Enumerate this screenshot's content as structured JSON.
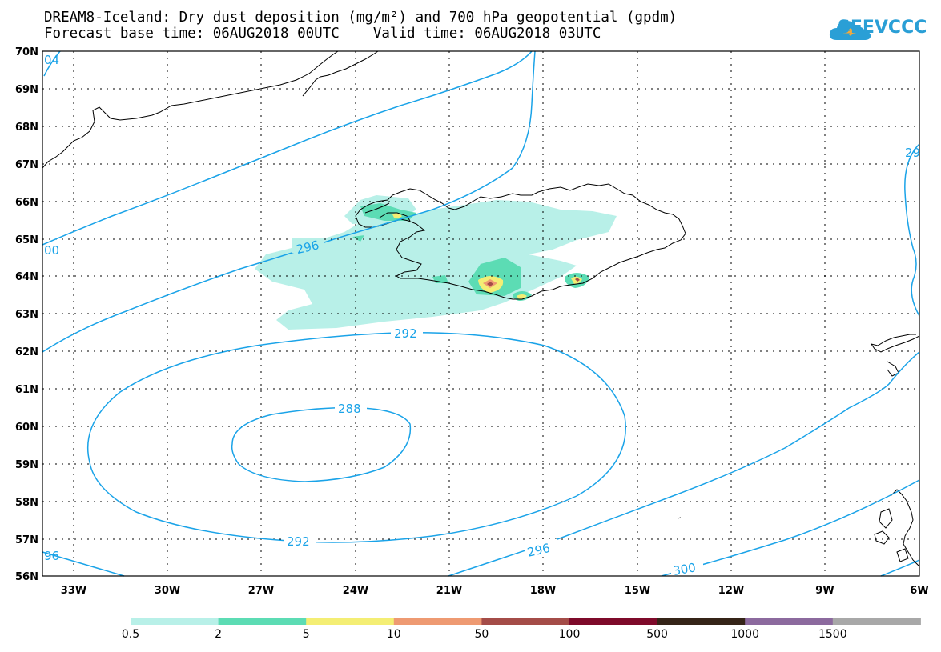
{
  "title": {
    "line1": "DREAM8-Iceland: Dry dust deposition (mg/m²) and 700 hPa geopotential (gpdm)",
    "line2": "Forecast base time: 06AUG2018 00UTC    Valid time: 06AUG2018 03UTC"
  },
  "logo": {
    "text": "SEEVCCC",
    "icon": "cloud-icon"
  },
  "map": {
    "lat_labels": [
      "70N",
      "69N",
      "68N",
      "67N",
      "66N",
      "65N",
      "64N",
      "63N",
      "62N",
      "61N",
      "60N",
      "59N",
      "58N",
      "57N",
      "56N"
    ],
    "lon_labels": [
      "33W",
      "30W",
      "27W",
      "24W",
      "21W",
      "18W",
      "15W",
      "12W",
      "9W",
      "6W"
    ]
  },
  "contours": {
    "color": "#1aa3e8",
    "labels": [
      "296",
      "292",
      "288",
      "292",
      "296",
      "300",
      "04",
      "00",
      "96",
      "29"
    ]
  },
  "colorbar": {
    "colors": [
      "#b8f0e8",
      "#5cdcb4",
      "#f4ee74",
      "#ee9a72",
      "#a44c48",
      "#7e0a2a",
      "#352418",
      "#8c6a9e",
      "#a8a8a8"
    ],
    "labels": [
      "0.5",
      "2",
      "5",
      "10",
      "50",
      "100",
      "500",
      "1000",
      "1500"
    ]
  }
}
